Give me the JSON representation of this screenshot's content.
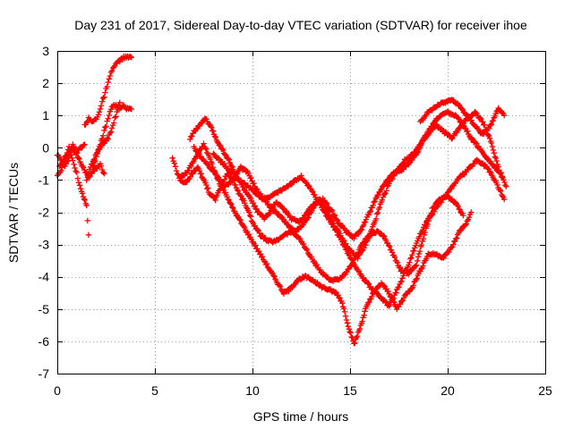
{
  "chart_data": {
    "type": "scatter",
    "title": "Day 231 of 2017, Sidereal Day-to-day VTEC variation (SDTVAR) for receiver ihoe",
    "xlabel": "GPS time / hours",
    "ylabel": "SDTVAR / TECUs",
    "xlim": [
      0,
      25
    ],
    "ylim": [
      -7,
      3
    ],
    "xticks": [
      "0",
      "5",
      "10",
      "15",
      "20",
      "25"
    ],
    "yticks": [
      "3",
      "2",
      "1",
      "0",
      "-1",
      "-2",
      "-3",
      "-4",
      "-5",
      "-6",
      "-7"
    ],
    "grid": true,
    "marker": "plus",
    "color": "#ff0000",
    "series": [
      {
        "x": [
          0.0,
          0.2,
          0.4,
          0.6,
          0.8,
          1.0,
          1.2,
          1.4
        ],
        "y": [
          -0.2,
          -0.4,
          -0.6,
          -0.3,
          0.1,
          -0.1,
          0.0,
          0.1
        ]
      },
      {
        "x": [
          0.0,
          0.2,
          0.4,
          0.6,
          0.8,
          1.0,
          1.2,
          1.5,
          1.6
        ],
        "y": [
          -0.9,
          -0.7,
          -0.3,
          0.0,
          -0.4,
          -0.8,
          -1.3,
          -1.8,
          -2.7
        ]
      },
      {
        "x": [
          0.1,
          0.4,
          0.7,
          1.0,
          1.3,
          1.6,
          1.9,
          2.2,
          2.4
        ],
        "y": [
          -0.6,
          -0.3,
          0.0,
          -0.2,
          -0.6,
          -0.9,
          -0.7,
          -0.5,
          -0.8
        ]
      },
      {
        "x": [
          1.4,
          1.6,
          1.8,
          2.0,
          2.2,
          2.4,
          2.6,
          2.8,
          3.0,
          3.2,
          3.4,
          3.6,
          3.8
        ],
        "y": [
          0.7,
          0.9,
          0.8,
          0.9,
          1.2,
          1.6,
          2.0,
          2.4,
          2.6,
          2.7,
          2.8,
          2.8,
          2.8
        ]
      },
      {
        "x": [
          1.8,
          2.0,
          2.2,
          2.4,
          2.6,
          2.8,
          3.0,
          3.2,
          3.4,
          3.6,
          3.8
        ],
        "y": [
          -0.6,
          -0.3,
          0.1,
          0.5,
          0.9,
          1.3,
          1.3,
          1.2,
          1.3,
          1.2,
          1.2
        ]
      },
      {
        "x": [
          1.5,
          1.7,
          2.0,
          2.3,
          2.6,
          2.8,
          3.0,
          3.2
        ],
        "y": [
          -1.0,
          -0.6,
          -0.2,
          0.1,
          0.3,
          0.6,
          1.0,
          1.4
        ]
      },
      {
        "x": [
          5.9,
          6.1,
          6.3,
          6.6,
          6.9,
          7.2,
          7.5,
          7.8,
          8.1,
          8.4,
          8.7,
          9.0,
          9.3,
          9.6,
          10.0,
          10.4,
          10.8,
          11.2,
          11.6,
          12.0,
          12.4,
          12.8,
          13.2,
          13.6,
          14.0,
          14.4,
          14.8,
          15.2,
          15.6,
          16.0,
          16.4,
          16.8,
          17.2,
          17.6,
          18.0,
          18.4,
          18.8,
          19.2,
          19.6,
          20.0,
          20.4,
          20.8
        ],
        "y": [
          -0.3,
          -0.7,
          -1.0,
          -1.1,
          -0.8,
          -0.6,
          -1.0,
          -1.4,
          -1.6,
          -1.2,
          -0.8,
          -1.0,
          -1.4,
          -1.7,
          -2.3,
          -2.7,
          -2.9,
          -2.9,
          -2.7,
          -2.6,
          -2.8,
          -3.2,
          -3.6,
          -3.9,
          -4.1,
          -4.1,
          -3.9,
          -3.5,
          -3.0,
          -2.7,
          -2.6,
          -2.8,
          -3.3,
          -3.8,
          -3.9,
          -3.6,
          -2.7,
          -1.9,
          -1.6,
          -1.5,
          -1.7,
          -2.1
        ]
      },
      {
        "x": [
          6.3,
          6.6,
          6.9,
          7.2,
          7.5,
          7.8,
          8.1,
          8.4,
          8.7,
          9.0,
          9.3,
          9.6,
          9.9,
          10.2,
          10.6,
          11.0,
          11.3,
          11.6,
          11.9,
          12.3,
          12.7,
          13.1,
          13.5,
          13.9,
          14.3,
          14.6,
          14.9,
          15.2,
          15.5,
          15.8,
          16.2,
          16.6,
          17.0,
          17.4,
          17.8,
          18.2,
          18.6,
          19.0,
          19.4,
          19.8,
          20.2,
          20.6,
          21.0,
          21.2
        ],
        "y": [
          -0.9,
          -0.8,
          -0.5,
          -0.2,
          0.1,
          -0.3,
          -0.8,
          -1.2,
          -1.5,
          -1.9,
          -2.2,
          -2.5,
          -2.8,
          -3.1,
          -3.5,
          -3.9,
          -4.2,
          -4.5,
          -4.4,
          -4.1,
          -4.0,
          -4.1,
          -4.3,
          -4.4,
          -4.5,
          -4.8,
          -5.5,
          -6.1,
          -5.6,
          -5.0,
          -4.5,
          -4.2,
          -4.5,
          -5.0,
          -4.6,
          -4.3,
          -3.8,
          -3.3,
          -3.3,
          -3.4,
          -3.1,
          -2.6,
          -2.3,
          -2.0
        ]
      },
      {
        "x": [
          6.8,
          7.0,
          7.3,
          7.6,
          7.9,
          8.2,
          8.5,
          8.8,
          9.1,
          9.4,
          9.7,
          10.0,
          10.3,
          10.6,
          10.9,
          11.2,
          11.6,
          12.0,
          12.4,
          12.8,
          13.2,
          13.6,
          14.0,
          14.4,
          14.8,
          15.2,
          15.6,
          16.0,
          16.4,
          16.8,
          17.2,
          17.6,
          18.0,
          18.4,
          18.8,
          19.2,
          19.6,
          20.0,
          20.4,
          20.8,
          21.2,
          21.6,
          22.0,
          22.4,
          22.8
        ],
        "y": [
          0.3,
          0.5,
          0.7,
          0.9,
          0.6,
          0.2,
          -0.1,
          -0.4,
          -0.8,
          -1.1,
          -1.4,
          -1.7,
          -2.0,
          -2.2,
          -2.0,
          -1.7,
          -1.9,
          -2.2,
          -2.3,
          -2.0,
          -1.7,
          -1.6,
          -1.9,
          -2.3,
          -2.6,
          -2.8,
          -2.5,
          -2.0,
          -1.5,
          -1.1,
          -0.8,
          -0.7,
          -0.5,
          -0.2,
          0.3,
          0.7,
          1.0,
          1.1,
          1.0,
          0.7,
          0.3,
          0.0,
          -0.3,
          -0.6,
          -0.9
        ]
      },
      {
        "x": [
          7.0,
          7.4,
          7.8,
          8.2,
          8.6,
          9.0,
          9.4,
          9.8,
          10.2,
          10.6,
          11.0,
          11.4,
          11.8,
          12.2,
          12.6,
          13.0,
          13.4,
          13.8,
          14.2,
          14.6,
          15.0,
          15.4,
          15.8,
          16.2,
          16.6,
          17.0,
          17.4,
          17.8,
          18.2,
          18.6,
          19.0,
          19.4,
          19.8,
          20.2,
          20.6,
          21.0,
          21.4,
          21.8,
          22.2,
          22.6,
          23.0
        ],
        "y": [
          0.0,
          -0.3,
          -0.6,
          -0.9,
          -1.2,
          -1.0,
          -0.6,
          -0.8,
          -1.3,
          -1.6,
          -1.9,
          -2.1,
          -2.4,
          -2.6,
          -2.4,
          -2.0,
          -1.6,
          -1.9,
          -2.4,
          -2.8,
          -3.2,
          -3.4,
          -3.0,
          -2.4,
          -1.7,
          -1.1,
          -0.7,
          -0.4,
          -0.2,
          0.1,
          0.4,
          0.7,
          0.5,
          0.3,
          0.6,
          0.9,
          1.1,
          0.8,
          0.2,
          -0.6,
          -1.2
        ]
      },
      {
        "x": [
          8.0,
          8.5,
          9.0,
          9.5,
          10.0,
          10.5,
          11.0,
          11.5,
          12.0,
          12.5,
          13.0,
          13.5,
          14.0,
          14.5,
          15.0,
          15.5,
          16.0,
          16.5,
          17.0,
          17.5,
          18.0,
          18.5,
          19.0,
          19.5,
          20.0,
          20.5,
          21.0,
          21.5,
          22.0,
          22.5,
          22.9
        ],
        "y": [
          -0.2,
          -0.5,
          -0.8,
          -1.1,
          -1.3,
          -1.6,
          -1.5,
          -1.3,
          -1.1,
          -0.9,
          -1.3,
          -1.8,
          -2.3,
          -2.8,
          -3.4,
          -3.9,
          -4.3,
          -4.6,
          -4.9,
          -4.3,
          -3.6,
          -2.8,
          -2.2,
          -1.8,
          -1.4,
          -1.0,
          -0.7,
          -0.4,
          -0.6,
          -1.1,
          -1.6
        ]
      },
      {
        "x": [
          18.6,
          19.0,
          19.4,
          19.8,
          20.2,
          20.6,
          21.0,
          21.4,
          21.8,
          22.2,
          22.6,
          22.9
        ],
        "y": [
          0.8,
          1.1,
          1.3,
          1.4,
          1.5,
          1.3,
          1.0,
          0.7,
          0.4,
          0.7,
          1.2,
          1.0
        ]
      }
    ]
  }
}
